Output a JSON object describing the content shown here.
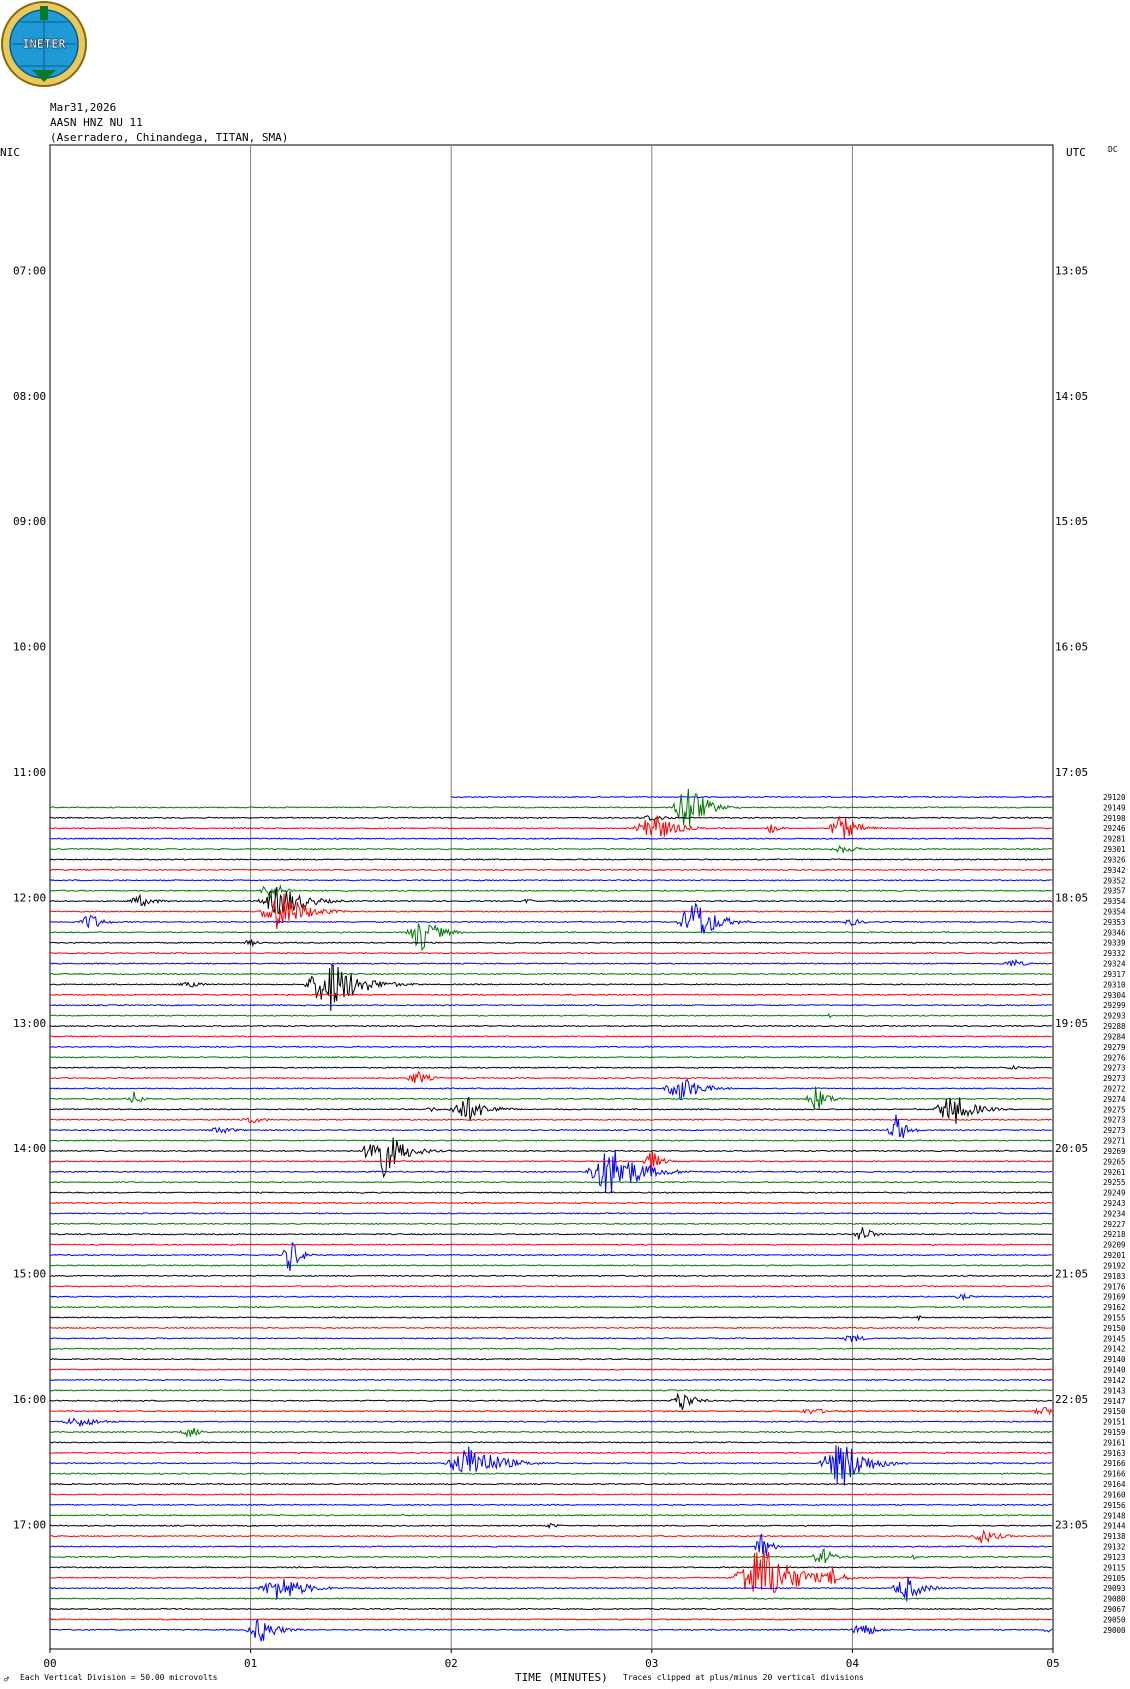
{
  "header": {
    "date": "Mar31,2026",
    "station": "AASN HNZ NU 11",
    "location": "(Aserradero, Chinandega, TITAN, SMA)",
    "left_zone": "NIC",
    "right_zone": "UTC",
    "dc_label": "DC",
    "logo_text": "INETER"
  },
  "footer": {
    "scale": "Each Vertical Division =    50.00 microvolts",
    "clip_note": "Traces clipped at plus/minus 20 vertical divisions",
    "corner_mark": "♂"
  },
  "chart_data": {
    "type": "line",
    "xlabel": "TIME (MINUTES)",
    "x_ticks": [
      "00",
      "01",
      "02",
      "03",
      "04",
      "05"
    ],
    "xlim": [
      0,
      5
    ],
    "left_time_labels": [
      "07:00",
      "08:00",
      "09:00",
      "10:00",
      "11:00",
      "12:00",
      "13:00",
      "14:00",
      "15:00",
      "16:00",
      "17:00"
    ],
    "right_time_labels": [
      "13:05",
      "14:05",
      "15:05",
      "16:05",
      "17:05",
      "18:05",
      "19:05",
      "20:05",
      "21:05",
      "22:05",
      "23:05"
    ],
    "grid": true,
    "trace_colors": [
      "#0000ff",
      "#007a00",
      "#000000",
      "#ff0000"
    ],
    "traces": [
      {
        "id": "29120",
        "color": "#0000ff",
        "start_min": 2.0,
        "events": []
      },
      {
        "id": "29149",
        "color": "#007a00",
        "events": [
          {
            "t": 3.18,
            "amp": 30,
            "w": 0.2
          }
        ]
      },
      {
        "id": "29198",
        "color": "#000000",
        "events": [
          {
            "t": 3.0,
            "amp": 4,
            "w": 0.2
          }
        ]
      },
      {
        "id": "29246",
        "color": "#ff0000",
        "events": [
          {
            "t": 3.0,
            "amp": 18,
            "w": 0.25
          },
          {
            "t": 3.95,
            "amp": 14,
            "w": 0.2
          },
          {
            "t": 3.6,
            "amp": 6,
            "w": 0.1
          }
        ]
      },
      {
        "id": "29281",
        "color": "#0000ff",
        "events": []
      },
      {
        "id": "29301",
        "color": "#007a00",
        "events": [
          {
            "t": 3.95,
            "amp": 4,
            "w": 0.2
          }
        ]
      },
      {
        "id": "29326",
        "color": "#000000",
        "events": []
      },
      {
        "id": "29342",
        "color": "#ff0000",
        "events": []
      },
      {
        "id": "29352",
        "color": "#0000ff",
        "events": []
      },
      {
        "id": "29357",
        "color": "#007a00",
        "events": [
          {
            "t": 1.1,
            "amp": 12,
            "w": 0.15
          }
        ]
      },
      {
        "id": "29354",
        "color": "#000000",
        "events": [
          {
            "t": 0.45,
            "amp": 6,
            "w": 0.2
          },
          {
            "t": 1.15,
            "amp": 18,
            "w": 0.3
          },
          {
            "t": 2.38,
            "amp": 5,
            "w": 0.05
          }
        ]
      },
      {
        "id": "29354",
        "color": "#ff0000",
        "events": [
          {
            "t": 1.15,
            "amp": 22,
            "w": 0.3
          }
        ]
      },
      {
        "id": "29353",
        "color": "#0000ff",
        "events": [
          {
            "t": 0.2,
            "amp": 10,
            "w": 0.15
          },
          {
            "t": 3.22,
            "amp": 24,
            "w": 0.25
          },
          {
            "t": 4.0,
            "amp": 4,
            "w": 0.15
          }
        ]
      },
      {
        "id": "29346",
        "color": "#007a00",
        "events": [
          {
            "t": 1.85,
            "amp": 20,
            "w": 0.2
          }
        ]
      },
      {
        "id": "29339",
        "color": "#000000",
        "events": [
          {
            "t": 1.0,
            "amp": 4,
            "w": 0.1
          }
        ]
      },
      {
        "id": "29332",
        "color": "#ff0000",
        "events": []
      },
      {
        "id": "29324",
        "color": "#0000ff",
        "events": [
          {
            "t": 4.8,
            "amp": 5,
            "w": 0.15
          }
        ]
      },
      {
        "id": "29317",
        "color": "#007a00",
        "events": []
      },
      {
        "id": "29310",
        "color": "#000000",
        "events": [
          {
            "t": 1.4,
            "amp": 28,
            "w": 0.35
          },
          {
            "t": 0.7,
            "amp": 3,
            "w": 0.2
          }
        ]
      },
      {
        "id": "29304",
        "color": "#ff0000",
        "events": []
      },
      {
        "id": "29299",
        "color": "#0000ff",
        "events": []
      },
      {
        "id": "29293",
        "color": "#007a00",
        "events": [
          {
            "t": 3.88,
            "amp": 10,
            "w": 0.02
          }
        ]
      },
      {
        "id": "29288",
        "color": "#000000",
        "events": []
      },
      {
        "id": "29284",
        "color": "#ff0000",
        "events": []
      },
      {
        "id": "29279",
        "color": "#0000ff",
        "events": []
      },
      {
        "id": "29276",
        "color": "#007a00",
        "events": []
      },
      {
        "id": "29273",
        "color": "#000000",
        "events": [
          {
            "t": 4.8,
            "amp": 3,
            "w": 0.1
          }
        ]
      },
      {
        "id": "29273",
        "color": "#ff0000",
        "events": [
          {
            "t": 1.83,
            "amp": 8,
            "w": 0.15
          }
        ]
      },
      {
        "id": "29272",
        "color": "#0000ff",
        "events": [
          {
            "t": 3.15,
            "amp": 14,
            "w": 0.25
          }
        ]
      },
      {
        "id": "29274",
        "color": "#007a00",
        "events": [
          {
            "t": 0.42,
            "amp": 8,
            "w": 0.1
          },
          {
            "t": 3.82,
            "amp": 14,
            "w": 0.15
          }
        ]
      },
      {
        "id": "29275",
        "color": "#000000",
        "events": [
          {
            "t": 2.08,
            "amp": 14,
            "w": 0.25
          },
          {
            "t": 4.5,
            "amp": 18,
            "w": 0.25
          },
          {
            "t": 1.9,
            "amp": 3,
            "w": 0.1
          }
        ]
      },
      {
        "id": "29273",
        "color": "#ff0000",
        "events": [
          {
            "t": 1.0,
            "amp": 4,
            "w": 0.2
          }
        ]
      },
      {
        "id": "29273",
        "color": "#0000ff",
        "events": [
          {
            "t": 0.85,
            "amp": 4,
            "w": 0.2
          },
          {
            "t": 4.22,
            "amp": 18,
            "w": 0.12
          }
        ]
      },
      {
        "id": "29271",
        "color": "#007a00",
        "events": []
      },
      {
        "id": "29269",
        "color": "#000000",
        "events": [
          {
            "t": 1.65,
            "amp": 30,
            "w": 0.25
          }
        ]
      },
      {
        "id": "29265",
        "color": "#ff0000",
        "events": [
          {
            "t": 3.0,
            "amp": 12,
            "w": 0.12
          }
        ]
      },
      {
        "id": "29261",
        "color": "#0000ff",
        "events": [
          {
            "t": 2.8,
            "amp": 28,
            "w": 0.35
          }
        ]
      },
      {
        "id": "29255",
        "color": "#007a00",
        "events": []
      },
      {
        "id": "29249",
        "color": "#000000",
        "events": []
      },
      {
        "id": "29243",
        "color": "#ff0000",
        "events": []
      },
      {
        "id": "29234",
        "color": "#0000ff",
        "events": []
      },
      {
        "id": "29227",
        "color": "#007a00",
        "events": []
      },
      {
        "id": "29218",
        "color": "#000000",
        "events": [
          {
            "t": 4.05,
            "amp": 10,
            "w": 0.12
          }
        ]
      },
      {
        "id": "29209",
        "color": "#ff0000",
        "events": []
      },
      {
        "id": "29201",
        "color": "#0000ff",
        "events": [
          {
            "t": 1.2,
            "amp": 20,
            "w": 0.12
          }
        ]
      },
      {
        "id": "29192",
        "color": "#007a00",
        "events": []
      },
      {
        "id": "29183",
        "color": "#000000",
        "events": []
      },
      {
        "id": "29176",
        "color": "#ff0000",
        "events": []
      },
      {
        "id": "29169",
        "color": "#0000ff",
        "events": [
          {
            "t": 4.55,
            "amp": 3,
            "w": 0.15
          }
        ]
      },
      {
        "id": "29162",
        "color": "#007a00",
        "events": []
      },
      {
        "id": "29155",
        "color": "#000000",
        "events": [
          {
            "t": 4.33,
            "amp": 6,
            "w": 0.02
          }
        ]
      },
      {
        "id": "29150",
        "color": "#ff0000",
        "events": []
      },
      {
        "id": "29145",
        "color": "#0000ff",
        "events": [
          {
            "t": 4.0,
            "amp": 5,
            "w": 0.15
          }
        ]
      },
      {
        "id": "29142",
        "color": "#007a00",
        "events": []
      },
      {
        "id": "29140",
        "color": "#000000",
        "events": []
      },
      {
        "id": "29140",
        "color": "#ff0000",
        "events": []
      },
      {
        "id": "29142",
        "color": "#0000ff",
        "events": []
      },
      {
        "id": "29143",
        "color": "#007a00",
        "events": [
          {
            "t": 1.62,
            "amp": 4,
            "w": 0.02
          }
        ]
      },
      {
        "id": "29147",
        "color": "#000000",
        "events": [
          {
            "t": 3.15,
            "amp": 12,
            "w": 0.15
          }
        ]
      },
      {
        "id": "29150",
        "color": "#ff0000",
        "events": [
          {
            "t": 4.95,
            "amp": 5,
            "w": 0.15
          },
          {
            "t": 3.8,
            "amp": 3,
            "w": 0.3
          }
        ]
      },
      {
        "id": "29151",
        "color": "#0000ff",
        "events": [
          {
            "t": 0.15,
            "amp": 5,
            "w": 0.3
          }
        ]
      },
      {
        "id": "29159",
        "color": "#007a00",
        "events": [
          {
            "t": 0.7,
            "amp": 6,
            "w": 0.15
          }
        ]
      },
      {
        "id": "29161",
        "color": "#000000",
        "events": []
      },
      {
        "id": "29163",
        "color": "#ff0000",
        "events": []
      },
      {
        "id": "29166",
        "color": "#0000ff",
        "events": [
          {
            "t": 2.1,
            "amp": 20,
            "w": 0.35
          },
          {
            "t": 3.95,
            "amp": 26,
            "w": 0.3
          }
        ]
      },
      {
        "id": "29166",
        "color": "#007a00",
        "events": []
      },
      {
        "id": "29164",
        "color": "#000000",
        "events": []
      },
      {
        "id": "29160",
        "color": "#ff0000",
        "events": []
      },
      {
        "id": "29156",
        "color": "#0000ff",
        "events": []
      },
      {
        "id": "29148",
        "color": "#007a00",
        "events": []
      },
      {
        "id": "29144",
        "color": "#000000",
        "events": [
          {
            "t": 2.5,
            "amp": 3,
            "w": 0.1
          }
        ]
      },
      {
        "id": "29138",
        "color": "#ff0000",
        "events": [
          {
            "t": 4.65,
            "amp": 8,
            "w": 0.2
          }
        ]
      },
      {
        "id": "29132",
        "color": "#0000ff",
        "events": [
          {
            "t": 3.55,
            "amp": 18,
            "w": 0.1
          }
        ]
      },
      {
        "id": "29123",
        "color": "#007a00",
        "events": [
          {
            "t": 3.85,
            "amp": 10,
            "w": 0.15
          },
          {
            "t": 4.3,
            "amp": 4,
            "w": 0.05
          }
        ]
      },
      {
        "id": "29115",
        "color": "#000000",
        "events": []
      },
      {
        "id": "29105",
        "color": "#ff0000",
        "events": [
          {
            "t": 3.55,
            "amp": 34,
            "w": 0.4
          },
          {
            "t": 3.9,
            "amp": 10,
            "w": 0.15
          }
        ]
      },
      {
        "id": "29093",
        "color": "#0000ff",
        "events": [
          {
            "t": 1.15,
            "amp": 14,
            "w": 0.3
          },
          {
            "t": 4.27,
            "amp": 14,
            "w": 0.2
          }
        ]
      },
      {
        "id": "29080",
        "color": "#007a00",
        "events": []
      },
      {
        "id": "29067",
        "color": "#000000",
        "events": []
      },
      {
        "id": "29050",
        "color": "#ff0000",
        "events": []
      },
      {
        "id": "29000",
        "color": "#0000ff",
        "events": [
          {
            "t": 1.05,
            "amp": 14,
            "w": 0.2
          },
          {
            "t": 4.05,
            "amp": 10,
            "w": 0.15
          },
          {
            "t": 4.97,
            "amp": 4,
            "w": 0.05
          }
        ]
      }
    ]
  }
}
